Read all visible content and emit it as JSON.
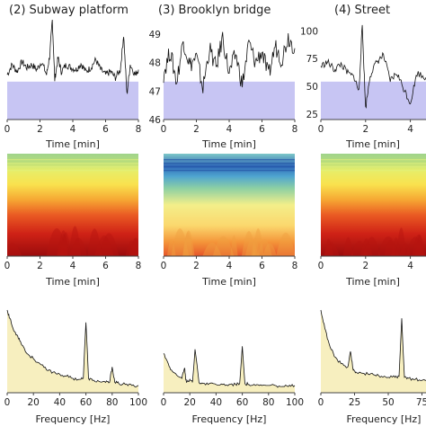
{
  "colors": {
    "time_panel_bg": "#c7c5f3",
    "freq_panel_bg": "#f7efbf",
    "trace": "#111111"
  },
  "columns": [
    {
      "title": "(2) Subway platform"
    },
    {
      "title": "(3) Brooklyn bridge"
    },
    {
      "title": "(4) Street"
    }
  ],
  "axis_labels": {
    "time": "Time [min]",
    "frequency": "Frequency [Hz]"
  },
  "chart_data": [
    {
      "type": "line",
      "panel": "time-series",
      "column": "(2) Subway platform",
      "xlabel": "Time [min]",
      "xlim": [
        0,
        8
      ],
      "xticks": [
        0,
        2,
        4,
        6,
        8
      ],
      "x": [
        0,
        0.3,
        0.6,
        0.9,
        1.2,
        1.5,
        1.8,
        2.1,
        2.4,
        2.6,
        2.75,
        2.9,
        3.1,
        3.3,
        3.6,
        3.9,
        4.2,
        4.5,
        4.8,
        5.1,
        5.4,
        5.7,
        6.0,
        6.3,
        6.6,
        6.9,
        7.1,
        7.3,
        7.5,
        7.8,
        8.0
      ],
      "y": [
        0.45,
        0.55,
        0.48,
        0.58,
        0.52,
        0.55,
        0.5,
        0.58,
        0.45,
        0.65,
        1.0,
        0.4,
        0.62,
        0.48,
        0.55,
        0.52,
        0.5,
        0.56,
        0.48,
        0.52,
        0.6,
        0.5,
        0.45,
        0.48,
        0.42,
        0.5,
        0.85,
        0.25,
        0.55,
        0.45,
        0.5
      ],
      "y_units": "normalized 0-1"
    },
    {
      "type": "line",
      "panel": "time-series",
      "column": "(3) Brooklyn bridge",
      "xlabel": "Time [min]",
      "xlim": [
        0,
        8
      ],
      "xticks": [
        0,
        2,
        4,
        6,
        8
      ],
      "ylim": [
        46,
        49.5
      ],
      "yticks": [
        46,
        47,
        48,
        49
      ],
      "x": [
        0,
        0.4,
        0.8,
        1.2,
        1.6,
        2.0,
        2.4,
        2.8,
        3.2,
        3.6,
        4.0,
        4.4,
        4.8,
        5.2,
        5.6,
        6.0,
        6.4,
        6.8,
        7.2,
        7.6,
        8.0
      ],
      "y": [
        47.6,
        48.4,
        47.3,
        48.8,
        47.9,
        48.2,
        47.1,
        48.5,
        47.8,
        48.9,
        47.6,
        48.3,
        47.2,
        48.7,
        48.0,
        48.4,
        47.5,
        48.6,
        48.1,
        48.9,
        48.5
      ]
    },
    {
      "type": "line",
      "panel": "time-series",
      "column": "(4) Street",
      "xlabel": "Time [min]",
      "xlim": [
        0,
        4.7
      ],
      "xticks": [
        0,
        2,
        4
      ],
      "ylim": [
        20,
        110
      ],
      "yticks": [
        25,
        50,
        75,
        100
      ],
      "x": [
        0,
        0.3,
        0.6,
        0.9,
        1.2,
        1.5,
        1.7,
        1.85,
        2.0,
        2.2,
        2.5,
        2.8,
        3.1,
        3.4,
        3.7,
        4.0,
        4.3,
        4.7
      ],
      "y": [
        68,
        72,
        65,
        70,
        62,
        58,
        45,
        105,
        30,
        60,
        72,
        78,
        55,
        62,
        48,
        35,
        62,
        58
      ]
    },
    {
      "type": "heatmap",
      "panel": "spectrogram",
      "column": "(2) Subway platform",
      "xlabel": "Time [min]",
      "xlim": [
        0,
        8
      ],
      "xticks": [
        0,
        2,
        4,
        6,
        8
      ]
    },
    {
      "type": "heatmap",
      "panel": "spectrogram",
      "column": "(3) Brooklyn bridge",
      "xlabel": "Time [min]",
      "xlim": [
        0,
        8
      ],
      "xticks": [
        0,
        2,
        4,
        6,
        8
      ]
    },
    {
      "type": "heatmap",
      "panel": "spectrogram",
      "column": "(4) Street",
      "xlabel": "Time [min]",
      "xlim": [
        0,
        4.7
      ],
      "xticks": [
        0,
        2,
        4
      ]
    },
    {
      "type": "area",
      "panel": "spectrum",
      "column": "(2) Subway platform",
      "xlabel": "Frequency [Hz]",
      "xlim": [
        0,
        100
      ],
      "xticks": [
        0,
        20,
        40,
        60,
        80,
        100
      ],
      "x": [
        0,
        2,
        5,
        8,
        10,
        15,
        20,
        25,
        30,
        35,
        40,
        45,
        50,
        55,
        58,
        60,
        62,
        65,
        70,
        75,
        78,
        80,
        82,
        85,
        90,
        95,
        100
      ],
      "y": [
        0.8,
        0.72,
        0.6,
        0.55,
        0.5,
        0.38,
        0.33,
        0.28,
        0.22,
        0.2,
        0.18,
        0.16,
        0.14,
        0.13,
        0.14,
        0.68,
        0.14,
        0.12,
        0.11,
        0.1,
        0.1,
        0.25,
        0.1,
        0.09,
        0.08,
        0.07,
        0.07
      ],
      "y_units": "normalized 0-1"
    },
    {
      "type": "area",
      "panel": "spectrum",
      "column": "(3) Brooklyn bridge",
      "xlabel": "Frequency [Hz]",
      "xlim": [
        0,
        100
      ],
      "xticks": [
        0,
        20,
        40,
        60,
        80,
        100
      ],
      "x": [
        0,
        3,
        6,
        10,
        14,
        16,
        17,
        18,
        20,
        22,
        24,
        27,
        30,
        35,
        40,
        45,
        50,
        55,
        58,
        60,
        62,
        65,
        70,
        75,
        80,
        85,
        90,
        95,
        100
      ],
      "y": [
        0.38,
        0.3,
        0.22,
        0.17,
        0.14,
        0.24,
        0.12,
        0.11,
        0.13,
        0.1,
        0.42,
        0.1,
        0.09,
        0.09,
        0.08,
        0.08,
        0.08,
        0.08,
        0.09,
        0.45,
        0.09,
        0.08,
        0.07,
        0.07,
        0.07,
        0.07,
        0.06,
        0.06,
        0.07
      ],
      "y_units": "normalized 0-1"
    },
    {
      "type": "area",
      "panel": "spectrum",
      "column": "(4) Street",
      "xlabel": "Frequency [Hz]",
      "xlim": [
        0,
        78
      ],
      "xticks": [
        0,
        25,
        50,
        75
      ],
      "x": [
        0,
        3,
        6,
        10,
        15,
        20,
        22,
        24,
        26,
        30,
        35,
        40,
        45,
        50,
        55,
        58,
        60,
        62,
        65,
        70,
        75,
        78
      ],
      "y": [
        0.8,
        0.62,
        0.48,
        0.35,
        0.28,
        0.25,
        0.4,
        0.22,
        0.2,
        0.19,
        0.18,
        0.17,
        0.16,
        0.15,
        0.15,
        0.16,
        0.72,
        0.15,
        0.14,
        0.13,
        0.12,
        0.12
      ],
      "y_units": "normalized 0-1"
    }
  ]
}
